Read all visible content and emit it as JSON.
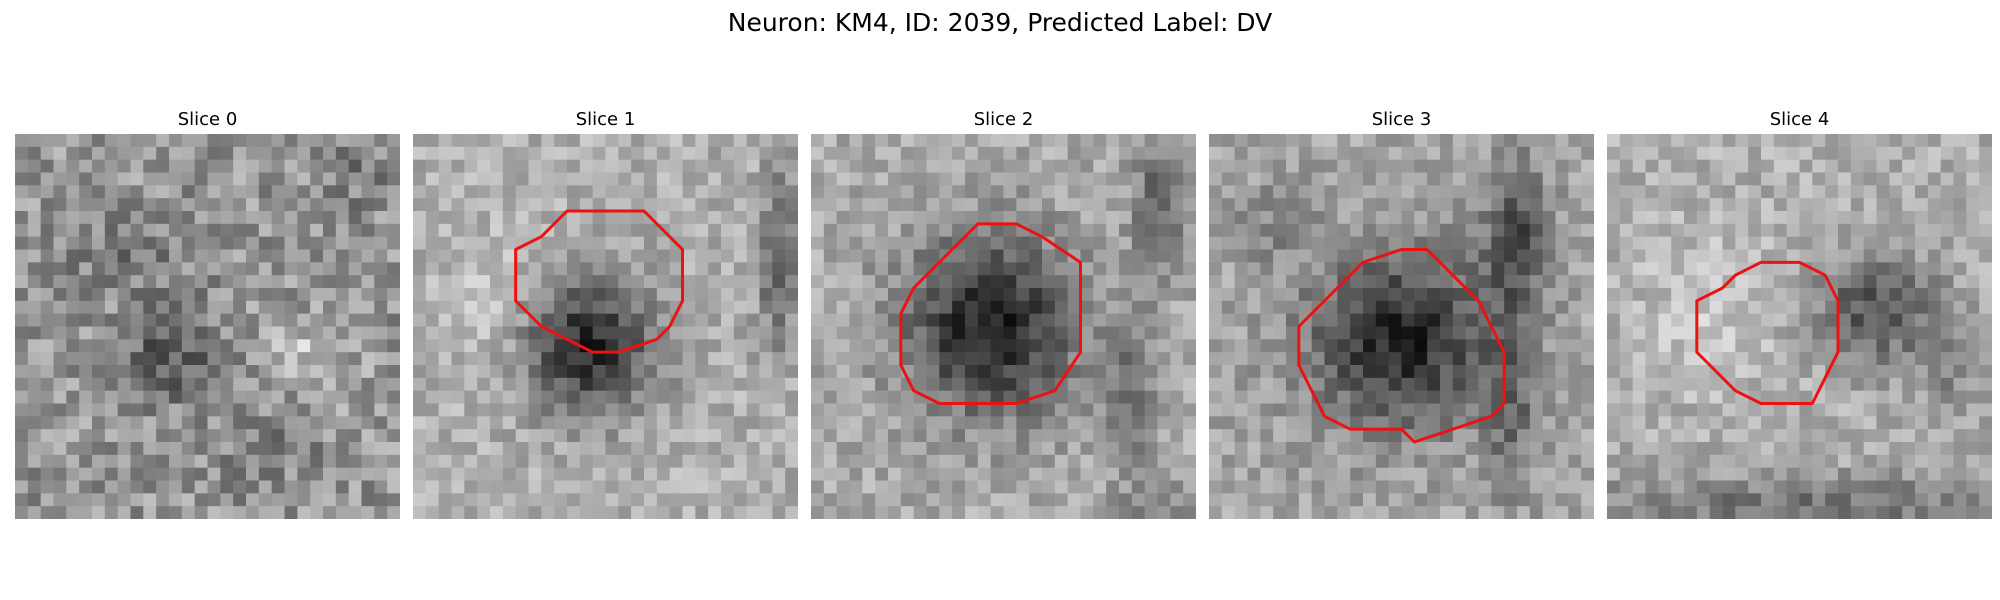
{
  "figure": {
    "title": "Neuron: KM4, ID: 2039, Predicted Label: DV"
  },
  "panels": [
    {
      "title": "Slice 0",
      "has_outline": false
    },
    {
      "title": "Slice 1",
      "has_outline": true
    },
    {
      "title": "Slice 2",
      "has_outline": true
    },
    {
      "title": "Slice 3",
      "has_outline": true
    },
    {
      "title": "Slice 4",
      "has_outline": true
    }
  ],
  "colors": {
    "outline": "#ee1111",
    "background": "#ffffff"
  }
}
